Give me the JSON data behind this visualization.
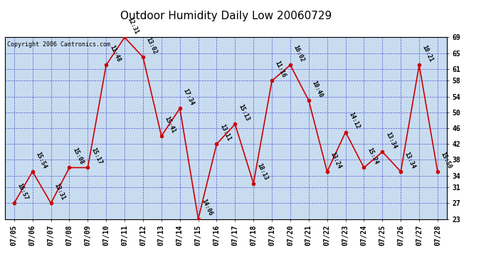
{
  "title": "Outdoor Humidity Daily Low 20060729",
  "copyright": "Copyright 2006 Cantronics.com",
  "background_color": "#ffffff",
  "plot_bg_color": "#c8dcf0",
  "line_color": "#cc0000",
  "marker_color": "#cc0000",
  "grid_color": "#3333cc",
  "text_color": "#000000",
  "ylim": [
    23,
    69
  ],
  "yticks": [
    23,
    27,
    31,
    34,
    38,
    42,
    46,
    50,
    54,
    58,
    61,
    65,
    69
  ],
  "dates": [
    "07/05",
    "07/06",
    "07/07",
    "07/08",
    "07/09",
    "07/10",
    "07/11",
    "07/12",
    "07/13",
    "07/14",
    "07/15",
    "07/16",
    "07/17",
    "07/18",
    "07/19",
    "07/20",
    "07/21",
    "07/22",
    "07/23",
    "07/24",
    "07/25",
    "07/26",
    "07/27",
    "07/28"
  ],
  "values": [
    27,
    35,
    27,
    36,
    36,
    62,
    69,
    64,
    44,
    51,
    23,
    42,
    47,
    32,
    58,
    62,
    53,
    35,
    45,
    36,
    40,
    35,
    62,
    35
  ],
  "labels": [
    "16:57",
    "15:54",
    "13:31",
    "15:08",
    "15:17",
    "11:48",
    "12:31",
    "13:02",
    "15:41",
    "17:34",
    "14:06",
    "13:11",
    "15:13",
    "18:13",
    "11:16",
    "16:02",
    "10:40",
    "13:24",
    "14:12",
    "15:24",
    "13:34",
    "13:34",
    "10:21",
    "15:50"
  ],
  "title_fontsize": 11,
  "label_fontsize": 6,
  "tick_fontsize": 7,
  "copyright_fontsize": 6
}
